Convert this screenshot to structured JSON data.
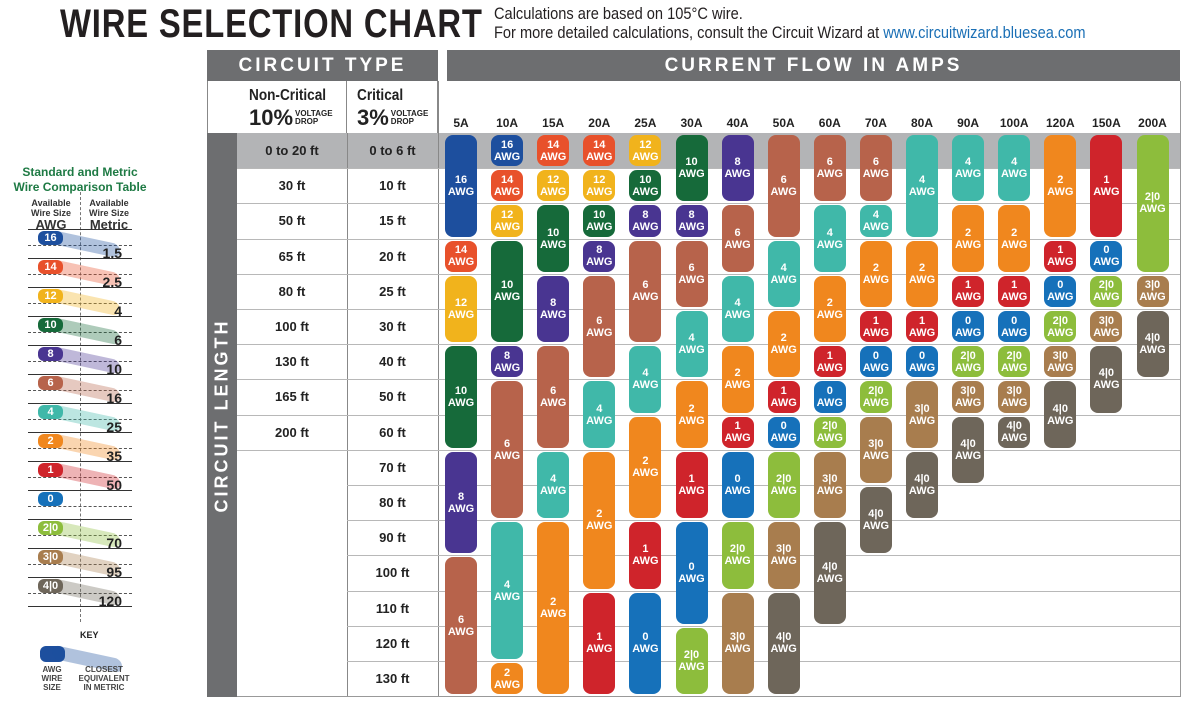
{
  "header": {
    "title": "WIRE SELECTION CHART",
    "line1": "Calculations are based on 105°C wire.",
    "line2": "For more detailed calculations, consult the Circuit Wizard at",
    "url": "www.circuitwizard.bluesea.com"
  },
  "table": {
    "circuit_type": "CIRCUIT TYPE",
    "current_flow": "CURRENT FLOW IN AMPS",
    "circuit_length": "CIRCUIT LENGTH",
    "non_critical": {
      "label": "Non-Critical",
      "pct": "10%",
      "v1": "VOLTAGE",
      "v2": "DROP"
    },
    "critical": {
      "label": "Critical",
      "pct": "3%",
      "v1": "VOLTAGE",
      "v2": "DROP"
    },
    "awg_suffix": "AWG"
  },
  "chart_data": {
    "type": "table",
    "non_critical_lengths": [
      "0 to 20 ft",
      "30 ft",
      "50 ft",
      "65 ft",
      "80 ft",
      "100 ft",
      "130 ft",
      "165 ft",
      "200 ft"
    ],
    "critical_lengths": [
      "0 to 6 ft",
      "10 ft",
      "15 ft",
      "20 ft",
      "25 ft",
      "30 ft",
      "40 ft",
      "50 ft",
      "60 ft",
      "70 ft",
      "80 ft",
      "90 ft",
      "100 ft",
      "110 ft",
      "120 ft",
      "130 ft"
    ],
    "columns": [
      {
        "amp": "5A",
        "segments": [
          [
            "16",
            3
          ],
          [
            "14",
            1
          ],
          [
            "12",
            2
          ],
          [
            "10",
            3
          ],
          [
            "8",
            3
          ],
          [
            "6",
            4
          ]
        ]
      },
      {
        "amp": "10A",
        "segments": [
          [
            "16",
            1
          ],
          [
            "14",
            1
          ],
          [
            "12",
            1
          ],
          [
            "10",
            3
          ],
          [
            "8",
            1
          ],
          [
            "6",
            4
          ],
          [
            "4",
            4
          ],
          [
            "2",
            1
          ]
        ]
      },
      {
        "amp": "15A",
        "segments": [
          [
            "14",
            1
          ],
          [
            "12",
            1
          ],
          [
            "10",
            2
          ],
          [
            "8",
            2
          ],
          [
            "6",
            3
          ],
          [
            "4",
            2
          ],
          [
            "2",
            5
          ]
        ]
      },
      {
        "amp": "20A",
        "segments": [
          [
            "14",
            1
          ],
          [
            "12",
            1
          ],
          [
            "10",
            1
          ],
          [
            "8",
            1
          ],
          [
            "6",
            3
          ],
          [
            "4",
            2
          ],
          [
            "2",
            4
          ],
          [
            "1",
            3
          ]
        ]
      },
      {
        "amp": "25A",
        "segments": [
          [
            "12",
            1
          ],
          [
            "10",
            1
          ],
          [
            "8",
            1
          ],
          [
            "6",
            3
          ],
          [
            "4",
            2
          ],
          [
            "2",
            3
          ],
          [
            "1",
            2
          ],
          [
            "0",
            3
          ]
        ]
      },
      {
        "amp": "30A",
        "segments": [
          [
            "10",
            2
          ],
          [
            "8",
            1
          ],
          [
            "6",
            2
          ],
          [
            "4",
            2
          ],
          [
            "2",
            2
          ],
          [
            "1",
            2
          ],
          [
            "0",
            3
          ],
          [
            "2|0",
            2
          ]
        ]
      },
      {
        "amp": "40A",
        "segments": [
          [
            "8",
            2
          ],
          [
            "6",
            2
          ],
          [
            "4",
            2
          ],
          [
            "2",
            2
          ],
          [
            "1",
            1
          ],
          [
            "0",
            2
          ],
          [
            "2|0",
            2
          ],
          [
            "3|0",
            3
          ]
        ]
      },
      {
        "amp": "50A",
        "segments": [
          [
            "6",
            3
          ],
          [
            "4",
            2
          ],
          [
            "2",
            2
          ],
          [
            "1",
            1
          ],
          [
            "0",
            1
          ],
          [
            "2|0",
            2
          ],
          [
            "3|0",
            2
          ],
          [
            "4|0",
            3
          ]
        ]
      },
      {
        "amp": "60A",
        "segments": [
          [
            "6",
            2
          ],
          [
            "4",
            2
          ],
          [
            "2",
            2
          ],
          [
            "1",
            1
          ],
          [
            "0",
            1
          ],
          [
            "2|0",
            1
          ],
          [
            "3|0",
            2
          ],
          [
            "4|0",
            3
          ]
        ]
      },
      {
        "amp": "70A",
        "segments": [
          [
            "6",
            2
          ],
          [
            "4",
            1
          ],
          [
            "2",
            2
          ],
          [
            "1",
            1
          ],
          [
            "0",
            1
          ],
          [
            "2|0",
            1
          ],
          [
            "3|0",
            2
          ],
          [
            "4|0",
            2
          ]
        ]
      },
      {
        "amp": "80A",
        "segments": [
          [
            "4",
            3
          ],
          [
            "2",
            2
          ],
          [
            "1",
            1
          ],
          [
            "0",
            1
          ],
          [
            "3|0",
            2
          ],
          [
            "4|0",
            2
          ]
        ]
      },
      {
        "amp": "90A",
        "segments": [
          [
            "4",
            2
          ],
          [
            "2",
            2
          ],
          [
            "1",
            1
          ],
          [
            "0",
            1
          ],
          [
            "2|0",
            1
          ],
          [
            "3|0",
            1
          ],
          [
            "4|0",
            2
          ]
        ]
      },
      {
        "amp": "100A",
        "segments": [
          [
            "4",
            2
          ],
          [
            "2",
            2
          ],
          [
            "1",
            1
          ],
          [
            "0",
            1
          ],
          [
            "2|0",
            1
          ],
          [
            "3|0",
            1
          ],
          [
            "4|0",
            1
          ]
        ]
      },
      {
        "amp": "120A",
        "segments": [
          [
            "2",
            3
          ],
          [
            "1",
            1
          ],
          [
            "0",
            1
          ],
          [
            "2|0",
            1
          ],
          [
            "3|0",
            1
          ],
          [
            "4|0",
            2
          ]
        ]
      },
      {
        "amp": "150A",
        "segments": [
          [
            "1",
            3
          ],
          [
            "0",
            1
          ],
          [
            "2|0",
            1
          ],
          [
            "3|0",
            1
          ],
          [
            "4|0",
            2
          ]
        ]
      },
      {
        "amp": "200A",
        "segments": [
          [
            "2|0",
            4
          ],
          [
            "3|0",
            1
          ],
          [
            "4|0",
            2
          ]
        ]
      }
    ]
  },
  "colors": {
    "16": "#1d4f9e",
    "14": "#e8512b",
    "12": "#f1b31c",
    "10": "#166a3a",
    "8": "#493591",
    "6": "#b7634b",
    "4": "#40b8a9",
    "2": "#f0871e",
    "1": "#cf242b",
    "0": "#1671ba",
    "2|0": "#8dbd3c",
    "3|0": "#a87d4e",
    "4|0": "#6e665a",
    "header_gray": "#6d6e70",
    "row_highlight": "#b3b4b6",
    "title_green": "#1e7a44"
  },
  "comparison": {
    "title1": "Standard and Metric",
    "title2": "Wire Comparison Table",
    "col1a": "Available",
    "col1b": "Wire Size",
    "col1c": "AWG",
    "col2a": "Available",
    "col2b": "Wire Size",
    "col2c": "Metric",
    "rows": [
      {
        "awg": "16",
        "metric": "1.5"
      },
      {
        "awg": "14",
        "metric": "2.5"
      },
      {
        "awg": "12",
        "metric": "4"
      },
      {
        "awg": "10",
        "metric": "6"
      },
      {
        "awg": "8",
        "metric": "10"
      },
      {
        "awg": "6",
        "metric": "16"
      },
      {
        "awg": "4",
        "metric": "25"
      },
      {
        "awg": "2",
        "metric": "35"
      },
      {
        "awg": "1",
        "metric": "50"
      },
      {
        "awg": "0",
        "metric": ""
      },
      {
        "awg": "2|0",
        "metric": "70"
      },
      {
        "awg": "3|0",
        "metric": "95"
      },
      {
        "awg": "4|0",
        "metric": "120"
      }
    ],
    "key": {
      "label": "KEY",
      "left1": "AWG",
      "left2": "WIRE",
      "left3": "SIZE",
      "right1": "CLOSEST",
      "right2": "EQUIVALENT",
      "right3": "IN METRIC"
    }
  }
}
